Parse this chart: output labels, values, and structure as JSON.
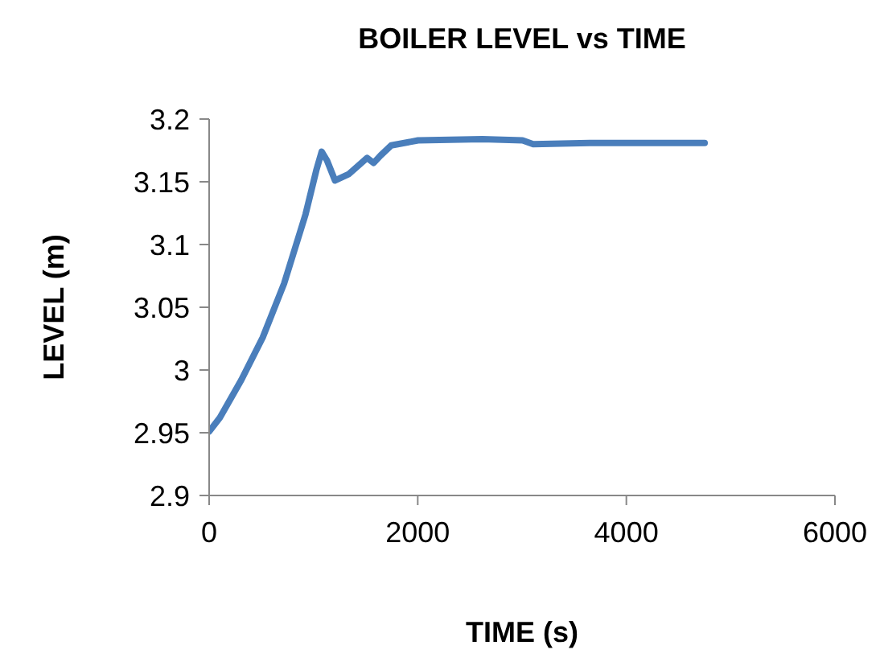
{
  "chart_data": {
    "type": "line",
    "title": "BOILER LEVEL vs TIME",
    "xlabel": "TIME (s)",
    "ylabel": "LEVEL (m)",
    "x": [
      0,
      103,
      308,
      514,
      719,
      924,
      1027,
      1079,
      1130,
      1207,
      1336,
      1515,
      1577,
      1644,
      1746,
      2003,
      2619,
      3005,
      3107,
      3647,
      4751
    ],
    "series": [
      {
        "color": "#4a7ebb",
        "values": [
          2.951,
          2.962,
          2.992,
          3.026,
          3.069,
          3.124,
          3.159,
          3.174,
          3.167,
          3.151,
          3.156,
          3.169,
          3.165,
          3.171,
          3.179,
          3.183,
          3.184,
          3.183,
          3.18,
          3.181,
          3.181
        ]
      }
    ],
    "xlim": [
      0,
      6000
    ],
    "xticks": [
      0,
      2000,
      4000,
      6000
    ],
    "ylim": [
      2.9,
      3.2
    ],
    "yticks": [
      2.9,
      2.95,
      3,
      3.05,
      3.1,
      3.15,
      3.2
    ],
    "grid": false,
    "legend": false,
    "marker": "none",
    "line_style": "solid"
  }
}
